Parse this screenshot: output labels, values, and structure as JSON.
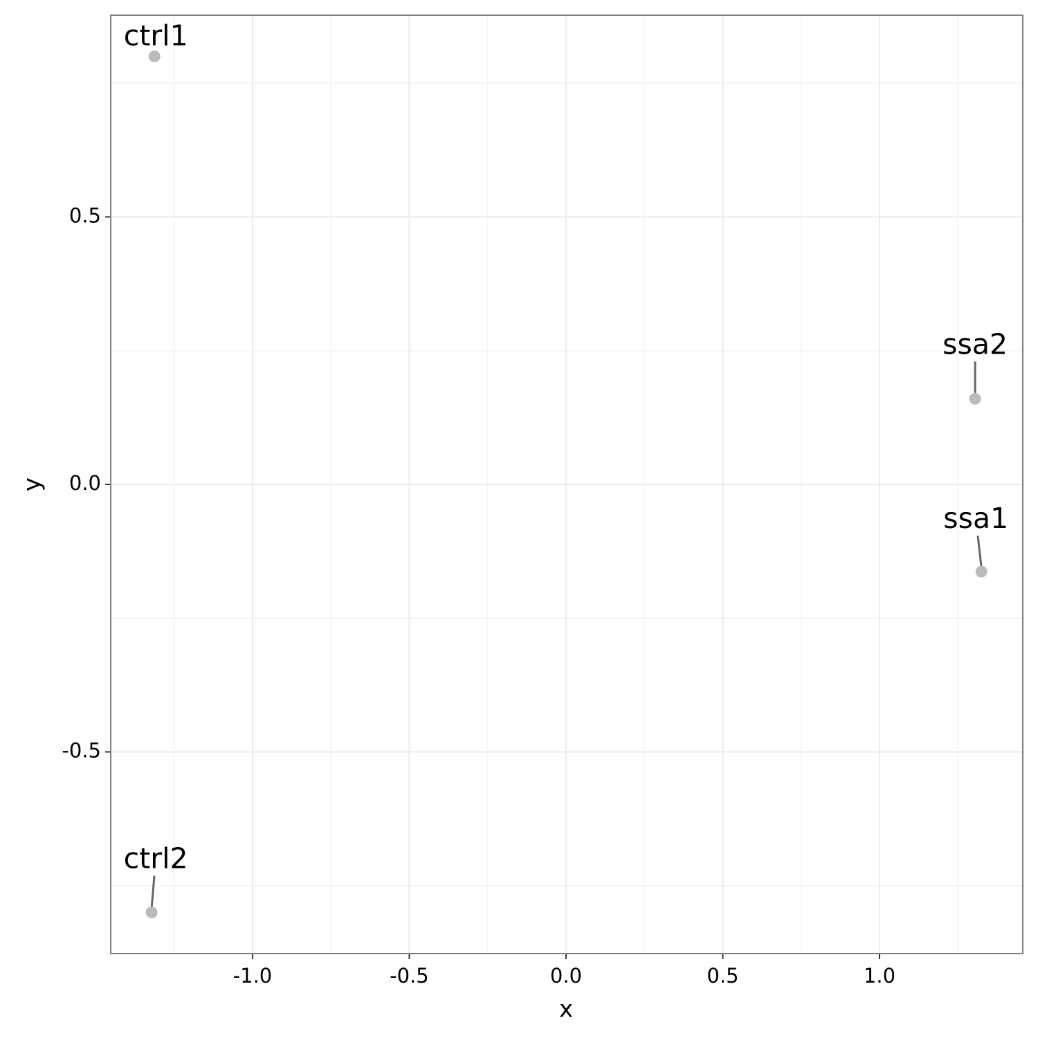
{
  "chart_data": {
    "type": "scatter",
    "x_label": "x",
    "y_label": "y",
    "labels": [
      "ctrl1",
      "ctrl2",
      "ssa2",
      "ssa1"
    ],
    "x": [
      -1.313,
      -1.322,
      1.305,
      1.325
    ],
    "y": [
      0.8,
      -0.8,
      0.16,
      -0.163
    ],
    "color": "#bbbbbb",
    "xlim": [
      -1.4525,
      1.457
    ],
    "ylim": [
      -0.877,
      0.877
    ],
    "xticks": [
      {
        "value": -1.0,
        "label": "-1.0"
      },
      -0.5,
      {
        "value": 0.0,
        "label": "0.0"
      },
      0.5,
      {
        "value": 1.0,
        "label": "1.0"
      }
    ],
    "yticks": [
      -0.5,
      {
        "value": 0.0,
        "label": "0.0"
      },
      0.5
    ],
    "grid": true
  }
}
